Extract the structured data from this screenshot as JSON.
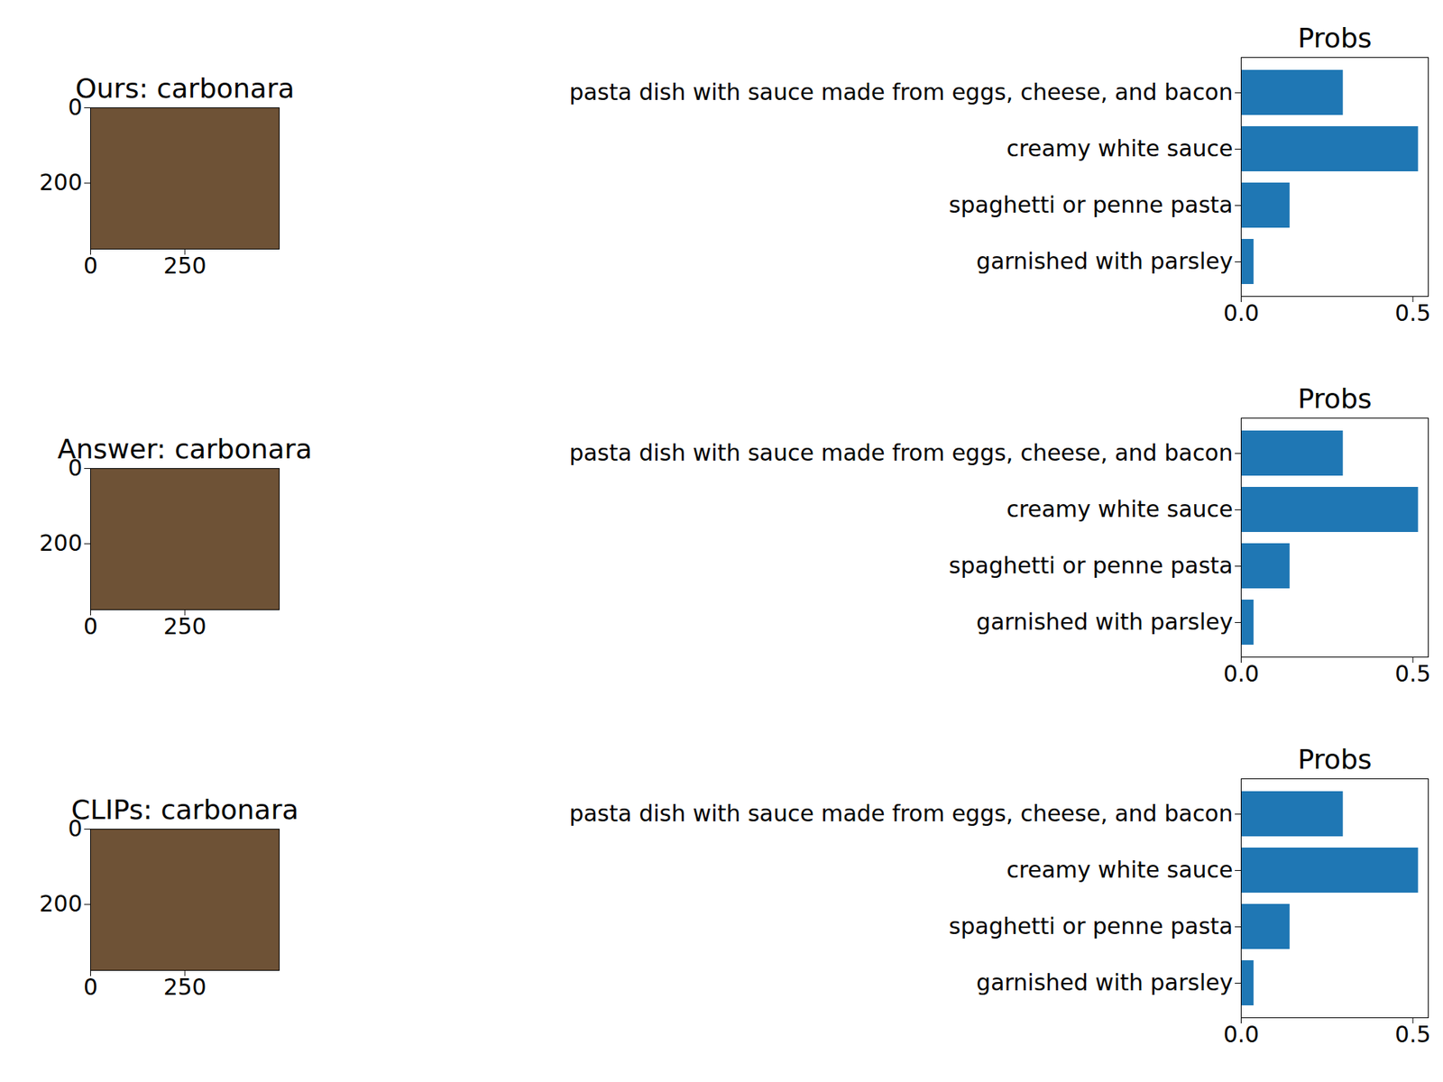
{
  "chart_data": [
    {
      "type": "image",
      "title": "Ours: carbonara",
      "xlim": [
        0,
        500
      ],
      "ylim": [
        0,
        375
      ],
      "xticks": [
        0,
        250
      ],
      "yticks": [
        0,
        200
      ]
    },
    {
      "type": "bar",
      "title": "Probs",
      "orientation": "horizontal",
      "color": "#1f77b4",
      "categories": [
        "pasta dish with sauce made from eggs, cheese, and bacon",
        "creamy white sauce",
        "spaghetti or penne pasta",
        "garnished with parsley"
      ],
      "values": [
        0.297,
        0.516,
        0.142,
        0.037
      ],
      "xlim": [
        0,
        0.545
      ],
      "xticks": [
        {
          "value": 0,
          "label": "0.0"
        },
        {
          "value": 0.5,
          "label": "0.5"
        }
      ]
    },
    {
      "type": "image",
      "title": "Answer: carbonara",
      "xlim": [
        0,
        500
      ],
      "ylim": [
        0,
        375
      ],
      "xticks": [
        0,
        250
      ],
      "yticks": [
        0,
        200
      ]
    },
    {
      "type": "bar",
      "title": "Probs",
      "orientation": "horizontal",
      "color": "#1f77b4",
      "categories": [
        "pasta dish with sauce made from eggs, cheese, and bacon",
        "creamy white sauce",
        "spaghetti or penne pasta",
        "garnished with parsley"
      ],
      "values": [
        0.297,
        0.516,
        0.142,
        0.037
      ],
      "xlim": [
        0,
        0.545
      ],
      "xticks": [
        {
          "value": 0,
          "label": "0.0"
        },
        {
          "value": 0.5,
          "label": "0.5"
        }
      ]
    },
    {
      "type": "image",
      "title": "CLIPs: carbonara",
      "xlim": [
        0,
        500
      ],
      "ylim": [
        0,
        375
      ],
      "xticks": [
        0,
        250
      ],
      "yticks": [
        0,
        200
      ]
    },
    {
      "type": "bar",
      "title": "Probs",
      "orientation": "horizontal",
      "color": "#1f77b4",
      "categories": [
        "pasta dish with sauce made from eggs, cheese, and bacon",
        "creamy white sauce",
        "spaghetti or penne pasta",
        "garnished with parsley"
      ],
      "values": [
        0.297,
        0.516,
        0.142,
        0.037
      ],
      "xlim": [
        0,
        0.545
      ],
      "xticks": [
        {
          "value": 0,
          "label": "0.0"
        },
        {
          "value": 0.5,
          "label": "0.5"
        }
      ]
    }
  ]
}
